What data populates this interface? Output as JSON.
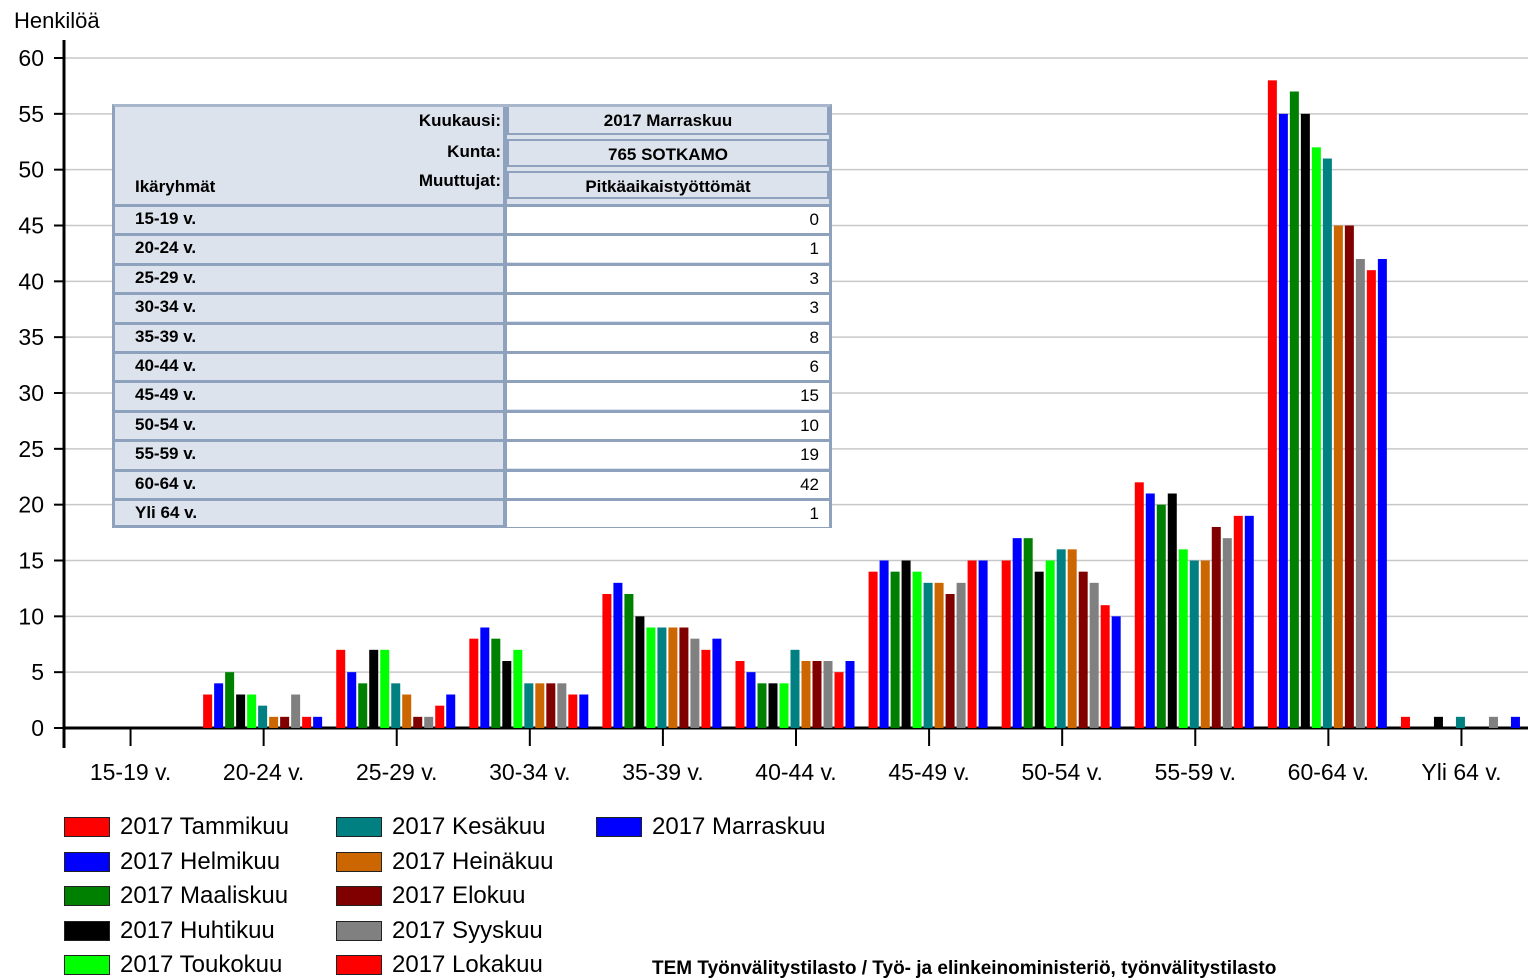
{
  "chart_data": {
    "type": "bar",
    "ylabel": "Henkilöä",
    "ylim": [
      0,
      60
    ],
    "yticks": [
      0,
      5,
      10,
      15,
      20,
      25,
      30,
      35,
      40,
      45,
      50,
      55,
      60
    ],
    "grid": true,
    "legend_position": "bottom-left",
    "categories": [
      "15-19 v.",
      "20-24 v.",
      "25-29 v.",
      "30-34 v.",
      "35-39 v.",
      "40-44 v.",
      "45-49 v.",
      "50-54 v.",
      "55-59 v.",
      "60-64 v.",
      "Yli 64 v."
    ],
    "series": [
      {
        "name": "2017 Tammikuu",
        "color": "#ff0000",
        "values": [
          0,
          3,
          7,
          8,
          12,
          6,
          14,
          15,
          22,
          58,
          1
        ]
      },
      {
        "name": "2017 Helmikuu",
        "color": "#0000ff",
        "values": [
          0,
          4,
          5,
          9,
          13,
          5,
          15,
          17,
          21,
          55,
          0
        ]
      },
      {
        "name": "2017 Maaliskuu",
        "color": "#008000",
        "values": [
          0,
          5,
          4,
          8,
          12,
          4,
          14,
          17,
          20,
          57,
          0
        ]
      },
      {
        "name": "2017 Huhtikuu",
        "color": "#000000",
        "values": [
          0,
          3,
          7,
          6,
          10,
          4,
          15,
          14,
          21,
          55,
          1
        ]
      },
      {
        "name": "2017 Toukokuu",
        "color": "#00ff00",
        "values": [
          0,
          3,
          7,
          7,
          9,
          4,
          14,
          15,
          16,
          52,
          0
        ]
      },
      {
        "name": "2017 Kesäkuu",
        "color": "#008080",
        "values": [
          0,
          2,
          4,
          4,
          9,
          7,
          13,
          16,
          15,
          51,
          1
        ]
      },
      {
        "name": "2017 Heinäkuu",
        "color": "#cc6600",
        "values": [
          0,
          1,
          3,
          4,
          9,
          6,
          13,
          16,
          15,
          45,
          0
        ]
      },
      {
        "name": "2017 Elokuu",
        "color": "#800000",
        "values": [
          0,
          1,
          1,
          4,
          9,
          6,
          12,
          14,
          18,
          45,
          0
        ]
      },
      {
        "name": "2017 Syyskuu",
        "color": "#808080",
        "values": [
          0,
          3,
          1,
          4,
          8,
          6,
          13,
          13,
          17,
          42,
          1
        ]
      },
      {
        "name": "2017 Lokakuu",
        "color": "#ff0000",
        "values": [
          0,
          1,
          2,
          3,
          7,
          5,
          15,
          11,
          19,
          41,
          0
        ]
      },
      {
        "name": "2017 Marraskuu",
        "color": "#0000ff",
        "values": [
          0,
          1,
          3,
          3,
          8,
          6,
          15,
          10,
          19,
          42,
          1
        ]
      }
    ]
  },
  "table": {
    "kuukausi_label": "Kuukausi:",
    "kuukausi_value": "2017 Marraskuu",
    "kunta_label": "Kunta:",
    "kunta_value": "765 SOTKAMO",
    "muuttujat_label": "Muuttujat:",
    "muuttujat_value": "Pitkäaikaistyöttömät",
    "row_header": "Ikäryhmät",
    "rows": [
      {
        "label": "15-19 v.",
        "value": "0"
      },
      {
        "label": "20-24 v.",
        "value": "1"
      },
      {
        "label": "25-29 v.",
        "value": "3"
      },
      {
        "label": "30-34 v.",
        "value": "3"
      },
      {
        "label": "35-39 v.",
        "value": "8"
      },
      {
        "label": "40-44 v.",
        "value": "6"
      },
      {
        "label": "45-49 v.",
        "value": "15"
      },
      {
        "label": "50-54 v.",
        "value": "10"
      },
      {
        "label": "55-59 v.",
        "value": "19"
      },
      {
        "label": "60-64 v.",
        "value": "42"
      },
      {
        "label": "Yli 64 v.",
        "value": "1"
      }
    ]
  },
  "source_text": "TEM Työnvälitystilasto / Työ- ja elinkeinoministeriö, työnvälitystilasto"
}
